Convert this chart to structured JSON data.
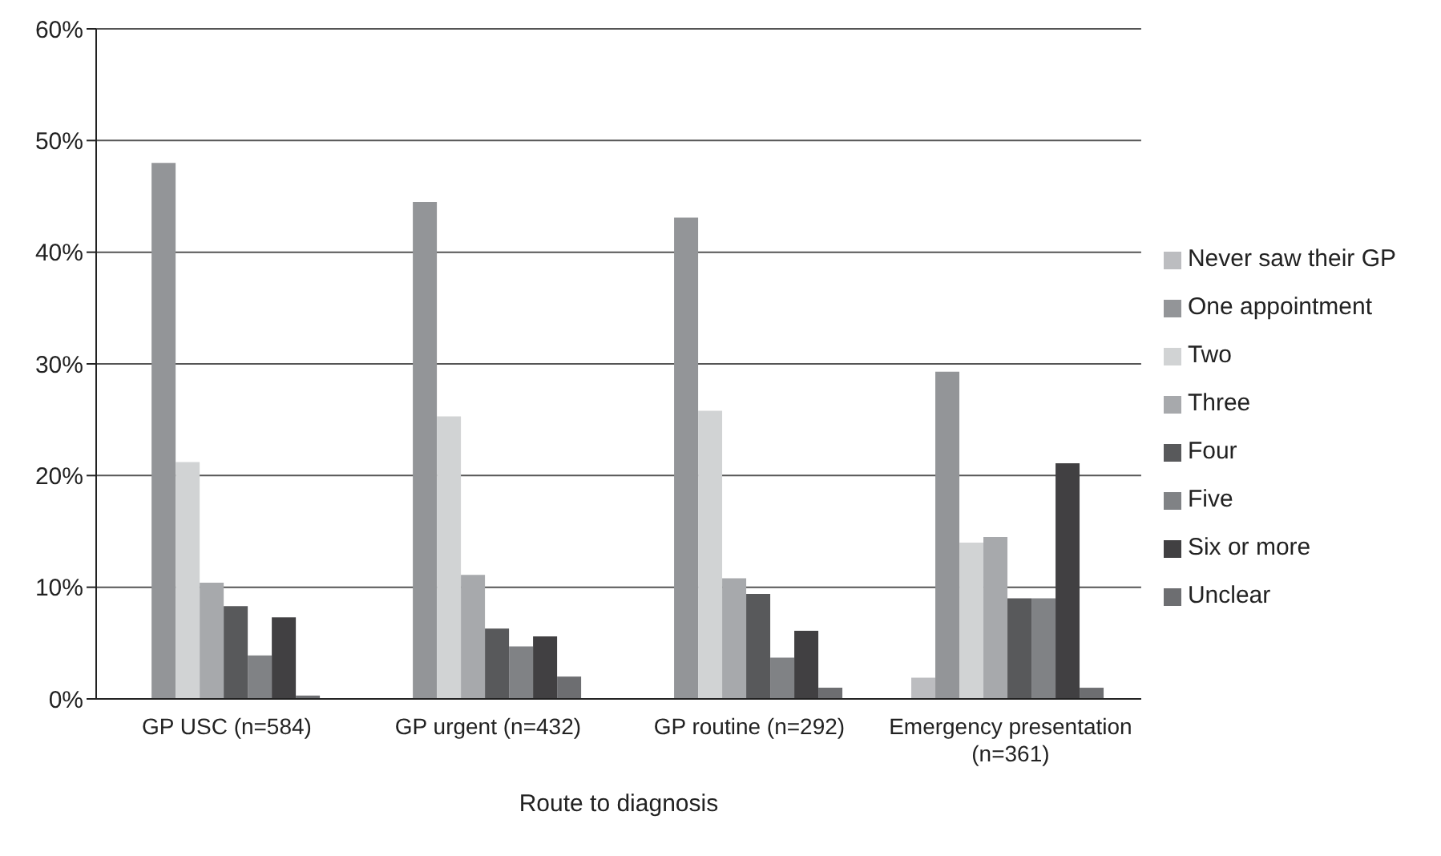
{
  "chart_data": {
    "type": "bar",
    "xlabel": "Route to diagnosis",
    "categories": [
      "GP USC (n=584)",
      "GP urgent  (n=432)",
      "GP routine  (n=292)",
      "Emergency presentation (n=361)"
    ],
    "series": [
      {
        "name": "Never saw their GP",
        "color": "#bcbdc0",
        "values": [
          0,
          0,
          0,
          1.9
        ]
      },
      {
        "name": "One appointment",
        "color": "#939598",
        "values": [
          48.0,
          44.5,
          43.1,
          29.3
        ]
      },
      {
        "name": "Two",
        "color": "#d1d3d4",
        "values": [
          21.2,
          25.3,
          25.8,
          14.0
        ]
      },
      {
        "name": "Three",
        "color": "#a7a9ac",
        "values": [
          10.4,
          11.1,
          10.8,
          14.5
        ]
      },
      {
        "name": "Four",
        "color": "#58595b",
        "values": [
          8.3,
          6.3,
          9.4,
          9.0
        ]
      },
      {
        "name": "Five",
        "color": "#808285",
        "values": [
          3.9,
          4.7,
          3.7,
          9.0
        ]
      },
      {
        "name": "Six or more",
        "color": "#414042",
        "values": [
          7.3,
          5.6,
          6.1,
          21.1
        ]
      },
      {
        "name": "Unclear",
        "color": "#6d6e71",
        "values": [
          0.3,
          2.0,
          1.0,
          1.0
        ]
      }
    ],
    "ylim": [
      0,
      60
    ],
    "yticks": [
      {
        "value": 0,
        "label": "0%"
      },
      {
        "value": 10,
        "label": "10%"
      },
      {
        "value": 20,
        "label": "20%"
      },
      {
        "value": 30,
        "label": "30%"
      },
      {
        "value": 40,
        "label": "40%"
      },
      {
        "value": 50,
        "label": "50%"
      },
      {
        "value": 60,
        "label": "60%"
      }
    ],
    "grid": "y",
    "legend": "right"
  }
}
